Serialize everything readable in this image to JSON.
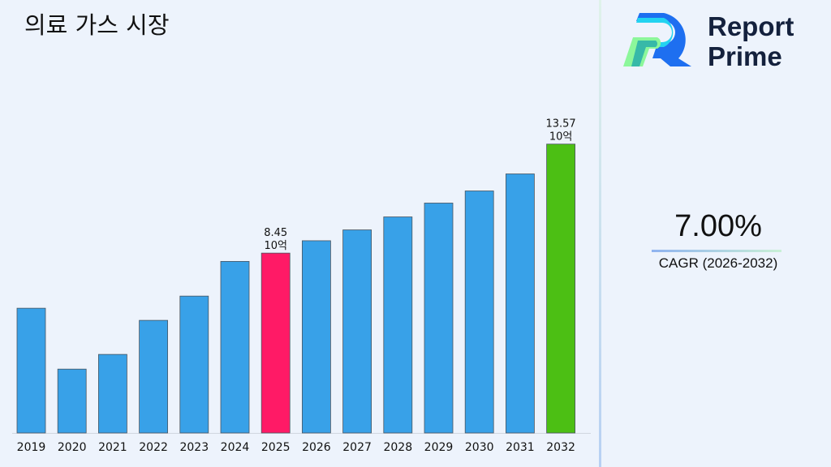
{
  "title": "의료 가스 시장",
  "brand": {
    "line1": "Report",
    "line2": "Prime"
  },
  "cagr": {
    "value": "7.00%",
    "label": "CAGR (2026-2032)"
  },
  "colors": {
    "bar": "#38a1e8",
    "highlight_2025": "#ff1a66",
    "highlight_2032": "#4cbf14"
  },
  "chart_data": {
    "type": "bar",
    "title": "의료 가스 시장",
    "xlabel": "",
    "ylabel": "",
    "categories": [
      "2019",
      "2020",
      "2021",
      "2022",
      "2023",
      "2024",
      "2025",
      "2026",
      "2027",
      "2028",
      "2029",
      "2030",
      "2031",
      "2032"
    ],
    "values": [
      5.86,
      3.0,
      3.69,
      5.29,
      6.43,
      8.06,
      8.45,
      9.03,
      9.54,
      10.15,
      10.8,
      11.37,
      12.17,
      13.57
    ],
    "ylim": [
      0,
      20.34
    ],
    "grid": false,
    "annotations": [
      {
        "category": "2025",
        "text": "8.45",
        "unit": "10억"
      },
      {
        "category": "2032",
        "text": "13.57",
        "unit": "10억"
      }
    ]
  }
}
